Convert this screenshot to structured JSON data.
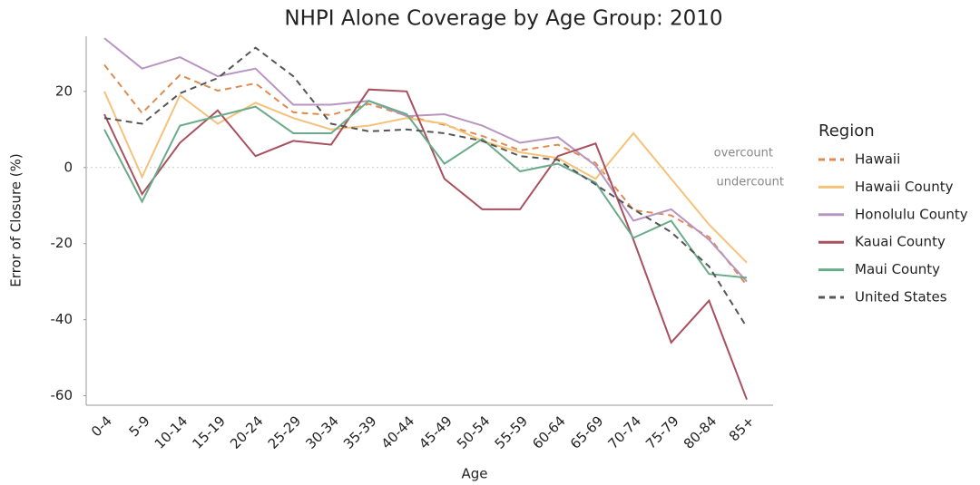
{
  "chart_data": {
    "type": "line",
    "title": "NHPI Alone Coverage by Age Group: 2010",
    "x_label": "Age",
    "y_label": "Error of Closure (%)",
    "categories": [
      "0-4",
      "5-9",
      "10-14",
      "15-19",
      "20-24",
      "25-29",
      "30-34",
      "35-39",
      "40-44",
      "45-49",
      "50-54",
      "55-59",
      "60-64",
      "65-69",
      "70-74",
      "75-79",
      "80-84",
      "85+"
    ],
    "series": [
      {
        "name": "Hawaii",
        "color": "#e08a50",
        "dashed": true,
        "values": [
          27,
          14.3,
          24.3,
          20.2,
          22.1,
          14.5,
          13.8,
          16.7,
          13.6,
          11.2,
          8.3,
          4.5,
          6,
          1.2,
          -11.2,
          -12.6,
          -18.3,
          -31
        ]
      },
      {
        "name": "Hawaii County",
        "color": "#f5c27a",
        "dashed": false,
        "values": [
          20,
          -2.5,
          19,
          11.5,
          17,
          13,
          10,
          11,
          13,
          11.5,
          7,
          4,
          2.5,
          -3,
          9,
          -3,
          -15,
          -25
        ]
      },
      {
        "name": "Honolulu County",
        "color": "#b895c0",
        "dashed": false,
        "values": [
          34,
          26,
          29,
          24,
          26,
          16.5,
          16.5,
          17.5,
          13.5,
          14,
          11,
          6.5,
          8,
          0.5,
          -14,
          -11,
          -19,
          -30
        ]
      },
      {
        "name": "Kauai County",
        "color": "#a8505e",
        "dashed": false,
        "values": [
          14,
          -7,
          6.5,
          15,
          3,
          7,
          6,
          20.5,
          20,
          -3,
          -11,
          -11,
          3,
          6.3,
          -19,
          -46,
          -35,
          -61
        ]
      },
      {
        "name": "Maui County",
        "color": "#6aab8a",
        "dashed": false,
        "values": [
          10,
          -9,
          11,
          13.5,
          16,
          9,
          9,
          17.5,
          14,
          1,
          7.5,
          -1,
          1,
          -4,
          -18.5,
          -14,
          -28,
          -29
        ]
      },
      {
        "name": "United States",
        "color": "#555555",
        "dashed": true,
        "values": [
          13,
          11.5,
          19.5,
          23.5,
          31.5,
          24,
          11.5,
          9.5,
          10,
          9,
          7,
          3,
          2,
          -4.5,
          -11,
          -17,
          -26,
          -42
        ]
      }
    ],
    "ylim": [
      -62.5,
      34.5
    ],
    "yticks": [
      20,
      0,
      -20,
      -40,
      -60
    ],
    "reference_line": 0,
    "annotations": [
      "overcount",
      "undercount"
    ],
    "legend_title": "Region",
    "legend": "right"
  }
}
